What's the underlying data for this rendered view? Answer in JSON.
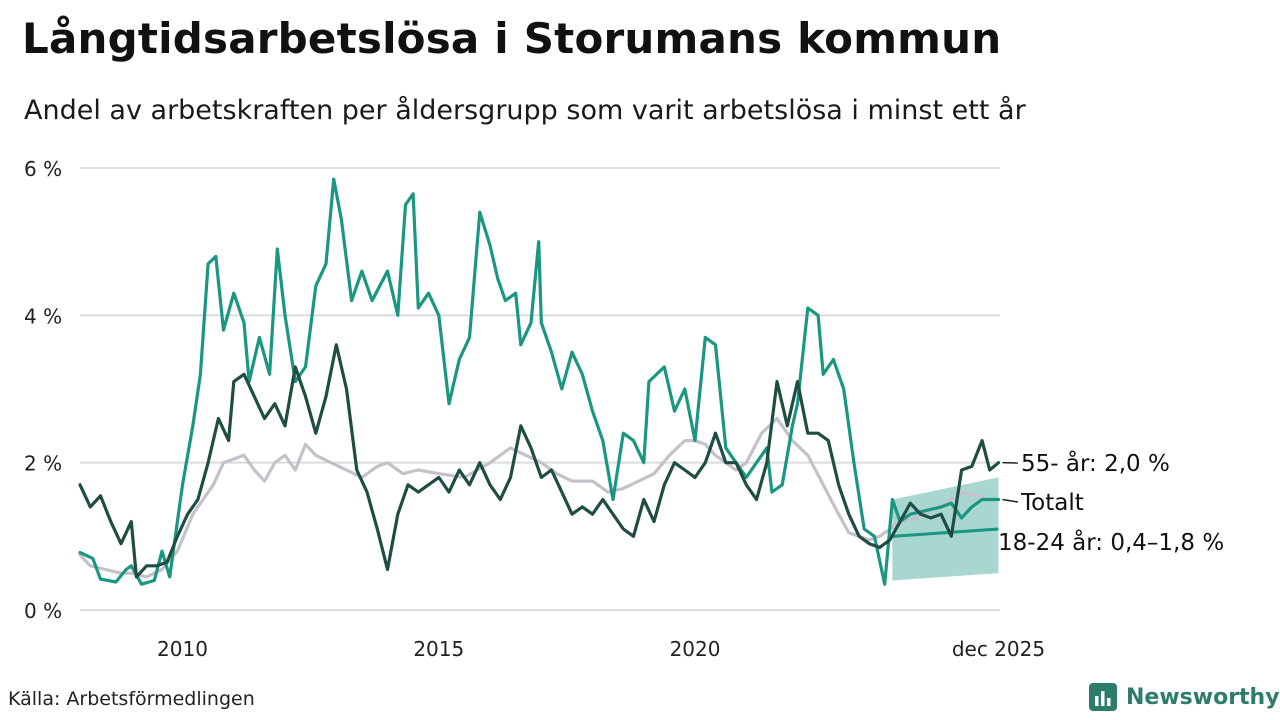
{
  "header": {
    "title": "Långtidsarbetslösa i Storumans kommun",
    "subtitle": "Andel av arbetskraften per åldersgrupp som varit arbetslösa i minst ett år"
  },
  "footer": {
    "source": "Källa: Arbetsförmedlingen",
    "brand": "Newsworthy"
  },
  "colors": {
    "young": "#1a9683",
    "old": "#1f4d44",
    "total": "#c4c1ca",
    "band": "#a3d5cd",
    "grid": "#dcdcdc"
  },
  "chart_data": {
    "type": "line",
    "title": "Långtidsarbetslösa i Storumans kommun",
    "xlabel": "",
    "ylabel": "",
    "xlim": [
      2008.0,
      2025.95
    ],
    "ylim": [
      0,
      6
    ],
    "y_ticks": [
      0,
      2,
      4,
      6
    ],
    "y_tick_labels": [
      "0 %",
      "2 %",
      "4 %",
      "6 %"
    ],
    "x_ticks": [
      2010,
      2015,
      2020,
      2025.92
    ],
    "x_tick_labels": [
      "2010",
      "2015",
      "2020",
      "dec 2025"
    ],
    "grid": true,
    "series": [
      {
        "name": "Totalt",
        "end_label": "Totalt",
        "points": [
          [
            2008.0,
            0.75
          ],
          [
            2008.2,
            0.6
          ],
          [
            2008.5,
            0.55
          ],
          [
            2008.8,
            0.5
          ],
          [
            2009.0,
            0.5
          ],
          [
            2009.3,
            0.45
          ],
          [
            2009.6,
            0.55
          ],
          [
            2009.9,
            0.8
          ],
          [
            2010.2,
            1.3
          ],
          [
            2010.4,
            1.5
          ],
          [
            2010.6,
            1.7
          ],
          [
            2010.8,
            2.0
          ],
          [
            2011.0,
            2.05
          ],
          [
            2011.2,
            2.1
          ],
          [
            2011.4,
            1.9
          ],
          [
            2011.6,
            1.75
          ],
          [
            2011.8,
            2.0
          ],
          [
            2012.0,
            2.1
          ],
          [
            2012.2,
            1.9
          ],
          [
            2012.4,
            2.25
          ],
          [
            2012.6,
            2.1
          ],
          [
            2012.9,
            2.0
          ],
          [
            2013.2,
            1.9
          ],
          [
            2013.5,
            1.8
          ],
          [
            2013.8,
            1.95
          ],
          [
            2014.0,
            2.0
          ],
          [
            2014.3,
            1.85
          ],
          [
            2014.6,
            1.9
          ],
          [
            2015.0,
            1.85
          ],
          [
            2015.5,
            1.8
          ],
          [
            2016.0,
            2.0
          ],
          [
            2016.4,
            2.2
          ],
          [
            2016.7,
            2.1
          ],
          [
            2017.0,
            2.0
          ],
          [
            2017.3,
            1.85
          ],
          [
            2017.6,
            1.75
          ],
          [
            2018.0,
            1.75
          ],
          [
            2018.3,
            1.6
          ],
          [
            2018.6,
            1.65
          ],
          [
            2018.9,
            1.75
          ],
          [
            2019.2,
            1.85
          ],
          [
            2019.5,
            2.1
          ],
          [
            2019.8,
            2.3
          ],
          [
            2020.0,
            2.3
          ],
          [
            2020.2,
            2.25
          ],
          [
            2020.4,
            2.1
          ],
          [
            2020.6,
            2.0
          ],
          [
            2020.8,
            1.9
          ],
          [
            2021.0,
            2.0
          ],
          [
            2021.3,
            2.4
          ],
          [
            2021.6,
            2.6
          ],
          [
            2021.9,
            2.3
          ],
          [
            2022.2,
            2.1
          ],
          [
            2022.5,
            1.7
          ],
          [
            2022.8,
            1.3
          ],
          [
            2023.0,
            1.05
          ],
          [
            2023.2,
            1.0
          ],
          [
            2023.4,
            0.95
          ],
          [
            2023.6,
            1.0
          ],
          [
            2023.8,
            1.1
          ],
          [
            2024.0,
            1.2
          ],
          [
            2024.3,
            1.25
          ],
          [
            2024.6,
            1.35
          ],
          [
            2024.9,
            1.45
          ],
          [
            2025.2,
            1.6
          ],
          [
            2025.5,
            1.55
          ],
          [
            2025.7,
            1.5
          ],
          [
            2025.92,
            1.5
          ]
        ]
      },
      {
        "name": "18-24 år",
        "end_label": "18-24 år: 0,4–1,8 %",
        "points": [
          [
            2008.0,
            0.78
          ],
          [
            2008.25,
            0.7
          ],
          [
            2008.4,
            0.42
          ],
          [
            2008.7,
            0.38
          ],
          [
            2008.9,
            0.55
          ],
          [
            2009.0,
            0.6
          ],
          [
            2009.2,
            0.35
          ],
          [
            2009.45,
            0.4
          ],
          [
            2009.6,
            0.8
          ],
          [
            2009.75,
            0.45
          ],
          [
            2010.0,
            1.7
          ],
          [
            2010.2,
            2.5
          ],
          [
            2010.35,
            3.2
          ],
          [
            2010.5,
            4.7
          ],
          [
            2010.65,
            4.8
          ],
          [
            2010.8,
            3.8
          ],
          [
            2011.0,
            4.3
          ],
          [
            2011.2,
            3.9
          ],
          [
            2011.3,
            3.1
          ],
          [
            2011.5,
            3.7
          ],
          [
            2011.7,
            3.2
          ],
          [
            2011.85,
            4.9
          ],
          [
            2012.0,
            4.0
          ],
          [
            2012.2,
            3.1
          ],
          [
            2012.4,
            3.3
          ],
          [
            2012.6,
            4.4
          ],
          [
            2012.8,
            4.7
          ],
          [
            2012.95,
            5.85
          ],
          [
            2013.1,
            5.3
          ],
          [
            2013.3,
            4.2
          ],
          [
            2013.5,
            4.6
          ],
          [
            2013.7,
            4.2
          ],
          [
            2014.0,
            4.6
          ],
          [
            2014.2,
            4.0
          ],
          [
            2014.35,
            5.5
          ],
          [
            2014.5,
            5.65
          ],
          [
            2014.6,
            4.1
          ],
          [
            2014.8,
            4.3
          ],
          [
            2015.0,
            4.0
          ],
          [
            2015.2,
            2.8
          ],
          [
            2015.4,
            3.4
          ],
          [
            2015.6,
            3.7
          ],
          [
            2015.8,
            5.4
          ],
          [
            2016.0,
            4.95
          ],
          [
            2016.15,
            4.5
          ],
          [
            2016.3,
            4.2
          ],
          [
            2016.5,
            4.3
          ],
          [
            2016.6,
            3.6
          ],
          [
            2016.8,
            3.9
          ],
          [
            2016.95,
            5.0
          ],
          [
            2017.0,
            3.9
          ],
          [
            2017.2,
            3.5
          ],
          [
            2017.4,
            3.0
          ],
          [
            2017.6,
            3.5
          ],
          [
            2017.8,
            3.2
          ],
          [
            2018.0,
            2.7
          ],
          [
            2018.2,
            2.3
          ],
          [
            2018.4,
            1.5
          ],
          [
            2018.6,
            2.4
          ],
          [
            2018.8,
            2.3
          ],
          [
            2019.0,
            2.0
          ],
          [
            2019.1,
            3.1
          ],
          [
            2019.4,
            3.3
          ],
          [
            2019.6,
            2.7
          ],
          [
            2019.8,
            3.0
          ],
          [
            2020.0,
            2.3
          ],
          [
            2020.2,
            3.7
          ],
          [
            2020.4,
            3.6
          ],
          [
            2020.6,
            2.2
          ],
          [
            2020.8,
            2.0
          ],
          [
            2021.0,
            1.8
          ],
          [
            2021.2,
            2.0
          ],
          [
            2021.4,
            2.2
          ],
          [
            2021.5,
            1.6
          ],
          [
            2021.7,
            1.7
          ],
          [
            2021.9,
            2.5
          ],
          [
            2022.0,
            2.8
          ],
          [
            2022.2,
            4.1
          ],
          [
            2022.4,
            4.0
          ],
          [
            2022.5,
            3.2
          ],
          [
            2022.7,
            3.4
          ],
          [
            2022.9,
            3.0
          ],
          [
            2023.1,
            2.0
          ],
          [
            2023.3,
            1.1
          ],
          [
            2023.5,
            1.0
          ],
          [
            2023.7,
            0.35
          ],
          [
            2023.85,
            1.5
          ],
          [
            2024.0,
            1.2
          ],
          [
            2024.2,
            1.3
          ],
          [
            2024.5,
            1.35
          ],
          [
            2024.8,
            1.4
          ],
          [
            2025.0,
            1.45
          ],
          [
            2025.2,
            1.25
          ],
          [
            2025.4,
            1.4
          ],
          [
            2025.6,
            1.5
          ],
          [
            2025.92,
            1.5
          ]
        ]
      },
      {
        "name": "55- år",
        "end_label": "55- år: 2,0 %",
        "points": [
          [
            2008.0,
            1.7
          ],
          [
            2008.2,
            1.4
          ],
          [
            2008.4,
            1.55
          ],
          [
            2008.6,
            1.2
          ],
          [
            2008.8,
            0.9
          ],
          [
            2009.0,
            1.2
          ],
          [
            2009.1,
            0.45
          ],
          [
            2009.3,
            0.6
          ],
          [
            2009.5,
            0.6
          ],
          [
            2009.7,
            0.65
          ],
          [
            2009.9,
            1.0
          ],
          [
            2010.1,
            1.3
          ],
          [
            2010.3,
            1.5
          ],
          [
            2010.5,
            2.0
          ],
          [
            2010.7,
            2.6
          ],
          [
            2010.9,
            2.3
          ],
          [
            2011.0,
            3.1
          ],
          [
            2011.2,
            3.2
          ],
          [
            2011.4,
            2.9
          ],
          [
            2011.6,
            2.6
          ],
          [
            2011.8,
            2.8
          ],
          [
            2012.0,
            2.5
          ],
          [
            2012.2,
            3.3
          ],
          [
            2012.4,
            2.9
          ],
          [
            2012.6,
            2.4
          ],
          [
            2012.8,
            2.9
          ],
          [
            2013.0,
            3.6
          ],
          [
            2013.2,
            3.0
          ],
          [
            2013.4,
            1.9
          ],
          [
            2013.6,
            1.6
          ],
          [
            2013.8,
            1.1
          ],
          [
            2014.0,
            0.55
          ],
          [
            2014.2,
            1.3
          ],
          [
            2014.4,
            1.7
          ],
          [
            2014.6,
            1.6
          ],
          [
            2014.8,
            1.7
          ],
          [
            2015.0,
            1.8
          ],
          [
            2015.2,
            1.6
          ],
          [
            2015.4,
            1.9
          ],
          [
            2015.6,
            1.7
          ],
          [
            2015.8,
            2.0
          ],
          [
            2016.0,
            1.7
          ],
          [
            2016.2,
            1.5
          ],
          [
            2016.4,
            1.8
          ],
          [
            2016.6,
            2.5
          ],
          [
            2016.8,
            2.2
          ],
          [
            2017.0,
            1.8
          ],
          [
            2017.2,
            1.9
          ],
          [
            2017.4,
            1.6
          ],
          [
            2017.6,
            1.3
          ],
          [
            2017.8,
            1.4
          ],
          [
            2018.0,
            1.3
          ],
          [
            2018.2,
            1.5
          ],
          [
            2018.4,
            1.3
          ],
          [
            2018.6,
            1.1
          ],
          [
            2018.8,
            1.0
          ],
          [
            2019.0,
            1.5
          ],
          [
            2019.2,
            1.2
          ],
          [
            2019.4,
            1.7
          ],
          [
            2019.6,
            2.0
          ],
          [
            2019.8,
            1.9
          ],
          [
            2020.0,
            1.8
          ],
          [
            2020.2,
            2.0
          ],
          [
            2020.4,
            2.4
          ],
          [
            2020.6,
            2.0
          ],
          [
            2020.8,
            2.0
          ],
          [
            2021.0,
            1.7
          ],
          [
            2021.2,
            1.5
          ],
          [
            2021.4,
            2.0
          ],
          [
            2021.6,
            3.1
          ],
          [
            2021.8,
            2.5
          ],
          [
            2022.0,
            3.1
          ],
          [
            2022.2,
            2.4
          ],
          [
            2022.4,
            2.4
          ],
          [
            2022.6,
            2.3
          ],
          [
            2022.8,
            1.7
          ],
          [
            2023.0,
            1.3
          ],
          [
            2023.2,
            1.0
          ],
          [
            2023.4,
            0.9
          ],
          [
            2023.6,
            0.85
          ],
          [
            2023.8,
            0.95
          ],
          [
            2024.0,
            1.2
          ],
          [
            2024.2,
            1.45
          ],
          [
            2024.4,
            1.3
          ],
          [
            2024.6,
            1.25
          ],
          [
            2024.8,
            1.3
          ],
          [
            2025.0,
            1.0
          ],
          [
            2025.2,
            1.9
          ],
          [
            2025.4,
            1.95
          ],
          [
            2025.6,
            2.3
          ],
          [
            2025.75,
            1.9
          ],
          [
            2025.92,
            2.0
          ]
        ]
      }
    ],
    "band": {
      "name": "18-24 år intervall",
      "x": [
        2023.85,
        2025.92
      ],
      "lower": [
        0.4,
        0.5
      ],
      "upper": [
        1.5,
        1.8
      ],
      "mid": [
        1.0,
        1.1
      ]
    }
  }
}
